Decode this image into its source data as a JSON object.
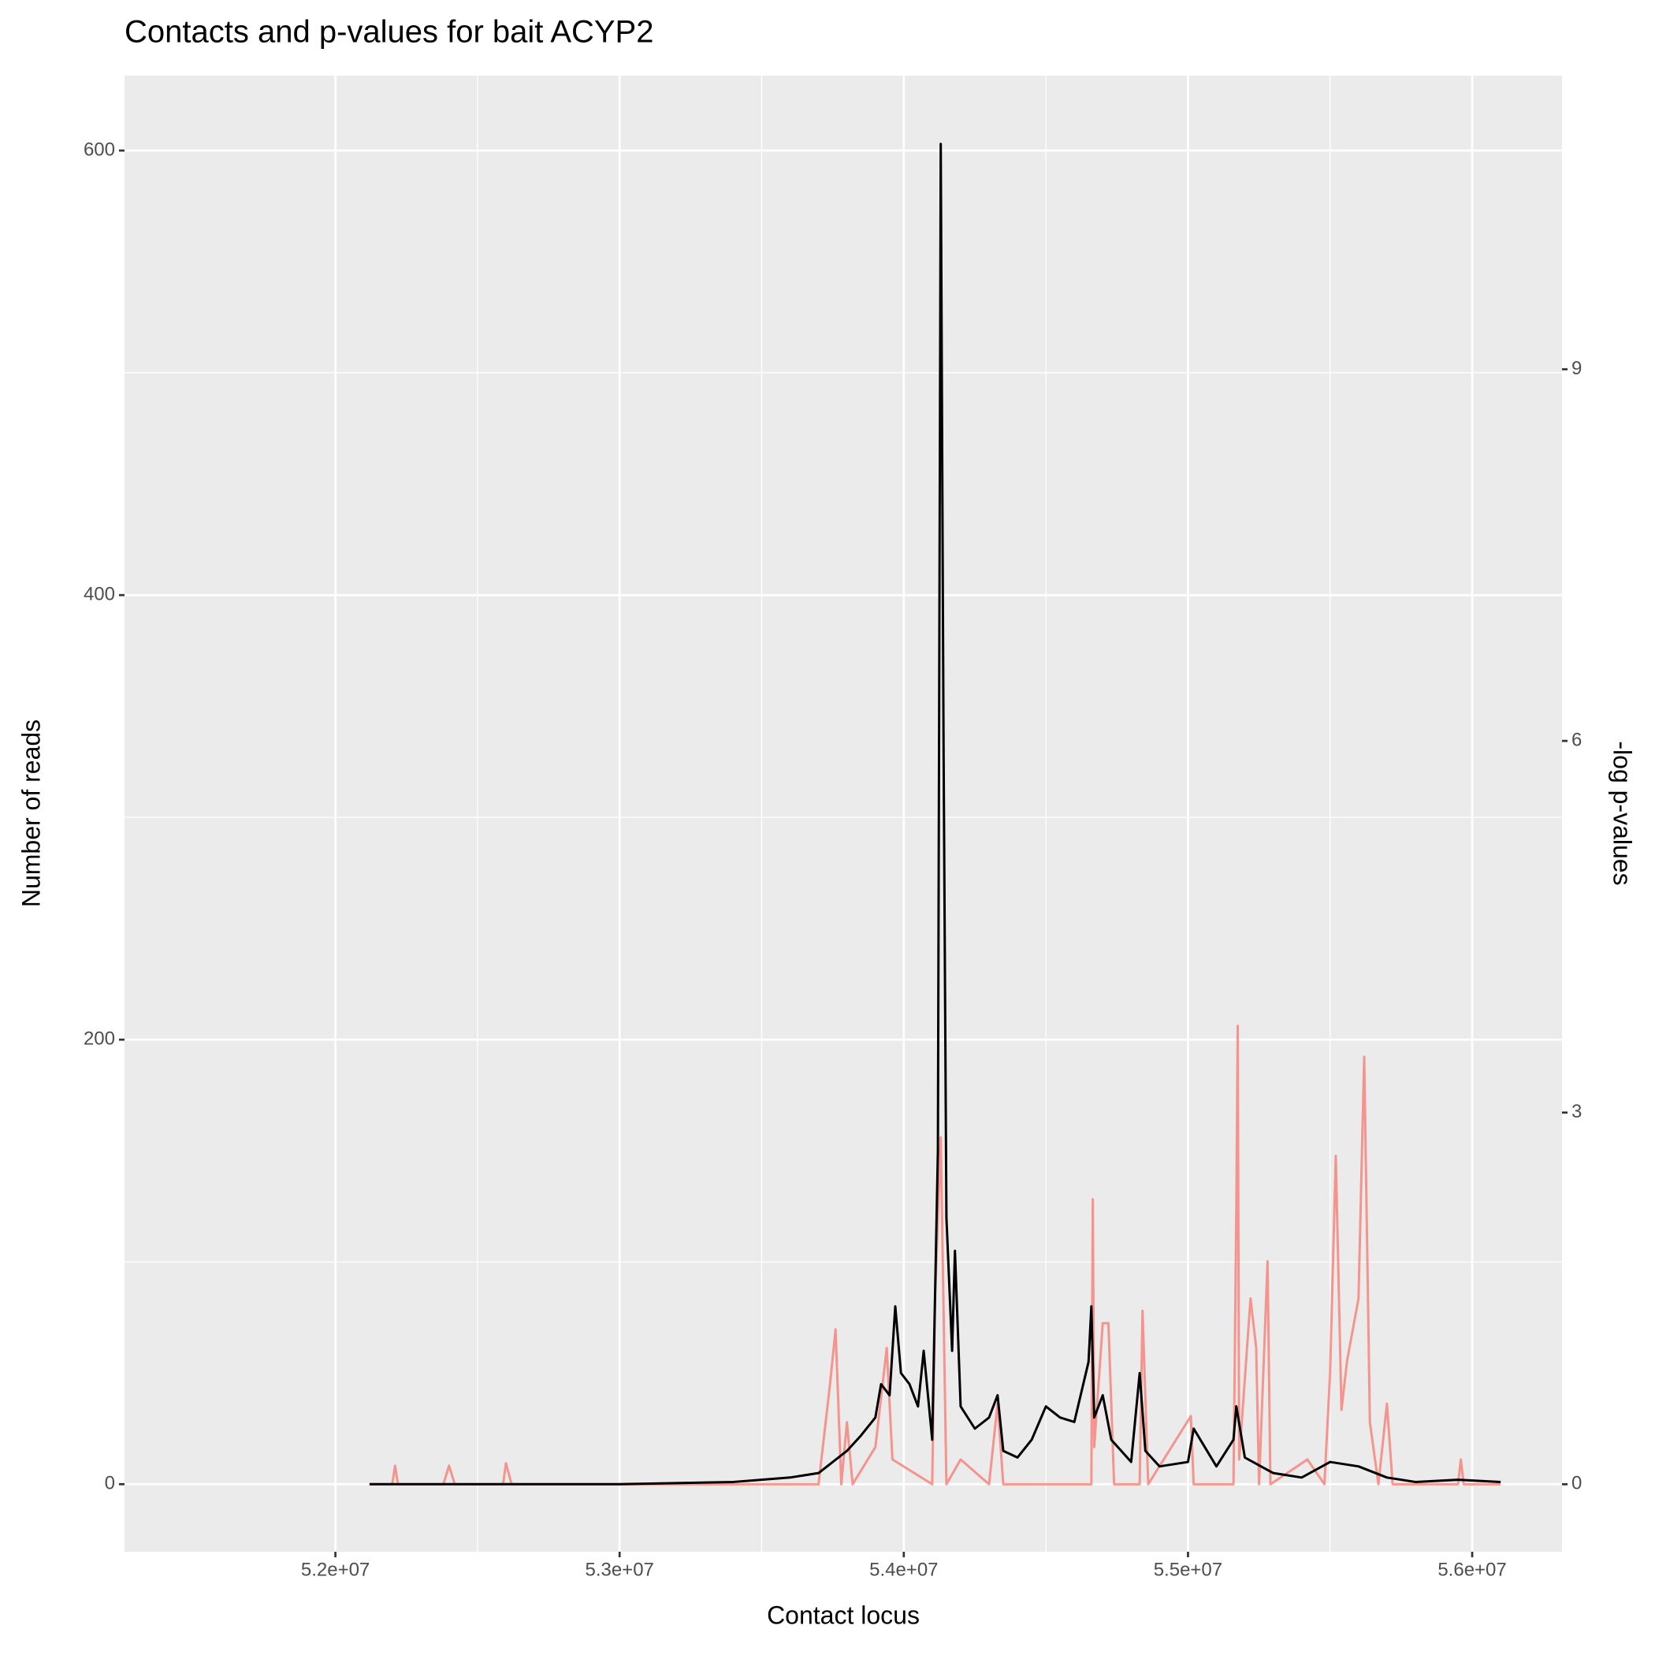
{
  "chart_data": {
    "type": "line",
    "title": "Contacts and p-values for bait ACYP2",
    "x_label": "Contact locus",
    "y_label": "Number of reads",
    "y2_label": "-log p-values",
    "xlim": [
      51258000,
      56316000
    ],
    "ylim": [
      -30.4,
      633.7
    ],
    "y2lim": [
      -0.545,
      11.37
    ],
    "xticks": [
      {
        "value": 52000000,
        "label": "5.2e+07"
      },
      {
        "value": 53000000,
        "label": "5.3e+07"
      },
      {
        "value": 54000000,
        "label": "5.4e+07"
      },
      {
        "value": 55000000,
        "label": "5.5e+07"
      },
      {
        "value": 56000000,
        "label": "5.6e+07"
      }
    ],
    "yticks": [
      0,
      200,
      400,
      600
    ],
    "y2ticks": [
      0,
      3,
      6,
      9
    ],
    "x_minor_grid": [
      52500000,
      53500000,
      54500000,
      55500000
    ],
    "y_minor_grid": [
      100,
      300,
      500
    ],
    "grid": true,
    "series": [
      {
        "axis": "y2",
        "color": "#f8766d",
        "x": [
          52120000,
          52200000,
          52210000,
          52220000,
          52380000,
          52400000,
          52420000,
          52590000,
          52600000,
          52620000,
          53700000,
          53740000,
          53760000,
          53780000,
          53800000,
          53820000,
          53900000,
          53940000,
          53960000,
          54100000,
          54110000,
          54130000,
          54150000,
          54200000,
          54300000,
          54330000,
          54350000,
          54500000,
          54660000,
          54665000,
          54670000,
          54700000,
          54720000,
          54740000,
          54830000,
          54840000,
          54860000,
          55010000,
          55020000,
          55160000,
          55170000,
          55175000,
          55180000,
          55220000,
          55240000,
          55250000,
          55280000,
          55290000,
          55420000,
          55480000,
          55500000,
          55520000,
          55540000,
          55560000,
          55600000,
          55620000,
          55640000,
          55670000,
          55700000,
          55720000,
          55950000,
          55960000,
          55970000,
          56100000
        ],
        "values": [
          0,
          0,
          0.15,
          0,
          0,
          0.15,
          0,
          0,
          0.17,
          0,
          0,
          0.8,
          1.25,
          0,
          0.5,
          0,
          0.3,
          1.1,
          0.2,
          0,
          1.5,
          2.8,
          0,
          0.2,
          0,
          0.65,
          0,
          0,
          0,
          2.3,
          0.3,
          1.3,
          1.3,
          0,
          0,
          1.4,
          0,
          0.55,
          0,
          0,
          2.2,
          3.7,
          0.2,
          1.5,
          1.1,
          0,
          1.8,
          0,
          0.2,
          0,
          0.9,
          2.65,
          0.6,
          1.0,
          1.5,
          3.45,
          0.5,
          0,
          0.65,
          0,
          0,
          0.2,
          0,
          0
        ]
      },
      {
        "axis": "y",
        "color": "#000000",
        "x": [
          52120000,
          52500000,
          53000000,
          53400000,
          53600000,
          53700000,
          53750000,
          53800000,
          53850000,
          53900000,
          53920000,
          53950000,
          53970000,
          53990000,
          54020000,
          54050000,
          54070000,
          54100000,
          54120000,
          54130000,
          54140000,
          54150000,
          54170000,
          54180000,
          54200000,
          54250000,
          54300000,
          54330000,
          54350000,
          54400000,
          54450000,
          54500000,
          54550000,
          54600000,
          54650000,
          54660000,
          54670000,
          54700000,
          54730000,
          54800000,
          54830000,
          54850000,
          54900000,
          55000000,
          55020000,
          55100000,
          55160000,
          55170000,
          55200000,
          55300000,
          55400000,
          55500000,
          55600000,
          55700000,
          55800000,
          55950000,
          56100000
        ],
        "values": [
          0,
          0,
          0,
          1,
          3,
          5,
          10,
          15,
          22,
          30,
          45,
          40,
          80,
          50,
          45,
          35,
          60,
          20,
          150,
          603,
          330,
          120,
          60,
          105,
          35,
          25,
          30,
          40,
          15,
          12,
          20,
          35,
          30,
          28,
          55,
          80,
          30,
          40,
          20,
          10,
          50,
          15,
          8,
          10,
          25,
          8,
          20,
          35,
          12,
          5,
          3,
          10,
          8,
          3,
          1,
          2,
          1
        ]
      }
    ]
  }
}
